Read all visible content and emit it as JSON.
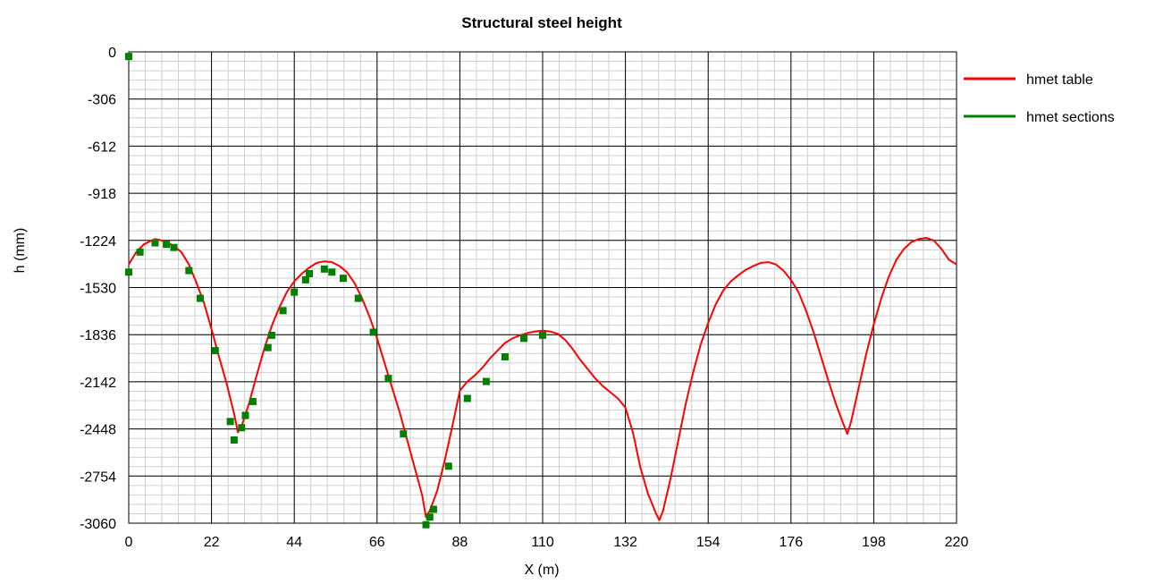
{
  "chart_data": {
    "type": "line",
    "title": "Structural steel height",
    "xlabel": "X (m)",
    "ylabel": "h (mm)",
    "xlim": [
      0,
      220
    ],
    "ylim": [
      -3060,
      0
    ],
    "xticks": [
      0,
      22,
      44,
      66,
      88,
      110,
      132,
      154,
      176,
      198,
      220
    ],
    "yticks": [
      0,
      -306,
      -612,
      -918,
      -1224,
      -1530,
      -1836,
      -2142,
      -2448,
      -2754,
      -3060
    ],
    "grid": true,
    "legend_position": "right",
    "series": [
      {
        "name": "hmet table",
        "color": "#ff0000",
        "style": "line",
        "x": [
          0,
          2,
          4,
          6,
          7,
          8,
          10,
          12,
          14,
          16,
          18,
          20,
          22,
          24,
          26,
          28,
          29,
          30,
          32,
          34,
          36,
          38,
          40,
          42,
          44,
          46,
          48,
          50,
          52,
          54,
          56,
          58,
          60,
          62,
          64,
          66,
          68,
          70,
          72,
          74,
          76,
          78,
          79,
          80,
          82,
          84,
          86,
          88,
          90,
          92,
          94,
          96,
          98,
          100,
          102,
          104,
          106,
          108,
          110,
          112,
          114,
          116,
          118,
          120,
          122,
          124,
          126,
          128,
          130,
          132,
          134,
          136,
          138,
          140,
          141,
          142,
          144,
          146,
          148,
          150,
          152,
          154,
          156,
          158,
          160,
          162,
          164,
          166,
          168,
          170,
          172,
          174,
          176,
          178,
          180,
          182,
          184,
          186,
          188,
          190,
          191,
          192,
          194,
          196,
          198,
          200,
          202,
          204,
          206,
          208,
          210,
          212,
          214,
          216,
          218,
          220
        ],
        "y": [
          -1380,
          -1300,
          -1250,
          -1225,
          -1215,
          -1220,
          -1235,
          -1260,
          -1300,
          -1380,
          -1500,
          -1630,
          -1800,
          -1980,
          -2150,
          -2350,
          -2470,
          -2430,
          -2280,
          -2100,
          -1930,
          -1780,
          -1660,
          -1560,
          -1490,
          -1440,
          -1400,
          -1370,
          -1360,
          -1365,
          -1390,
          -1430,
          -1500,
          -1600,
          -1720,
          -1860,
          -2020,
          -2180,
          -2340,
          -2520,
          -2700,
          -2880,
          -3020,
          -2980,
          -2850,
          -2650,
          -2430,
          -2200,
          -2140,
          -2100,
          -2050,
          -1990,
          -1940,
          -1890,
          -1860,
          -1840,
          -1825,
          -1815,
          -1810,
          -1815,
          -1830,
          -1870,
          -1930,
          -2000,
          -2060,
          -2120,
          -2170,
          -2210,
          -2250,
          -2310,
          -2470,
          -2700,
          -2870,
          -2990,
          -3040,
          -2980,
          -2770,
          -2530,
          -2290,
          -2080,
          -1900,
          -1760,
          -1640,
          -1550,
          -1490,
          -1450,
          -1415,
          -1390,
          -1370,
          -1365,
          -1380,
          -1420,
          -1480,
          -1560,
          -1680,
          -1820,
          -1980,
          -2140,
          -2290,
          -2420,
          -2480,
          -2400,
          -2180,
          -1960,
          -1770,
          -1600,
          -1460,
          -1350,
          -1280,
          -1235,
          -1215,
          -1208,
          -1225,
          -1280,
          -1350,
          -1380
        ]
      },
      {
        "name": "hmet sections",
        "color": "#008000",
        "style": "marker",
        "x": [
          0,
          0,
          3,
          7,
          10,
          12,
          16,
          19,
          23,
          27,
          28,
          30,
          31,
          33,
          37,
          38,
          41,
          44,
          47,
          48,
          52,
          54,
          57,
          61,
          65,
          69,
          73,
          79,
          80,
          81,
          85,
          90,
          95,
          100,
          105,
          110
        ],
        "y": [
          -30,
          -1430,
          -1300,
          -1240,
          -1250,
          -1270,
          -1420,
          -1600,
          -1940,
          -2400,
          -2520,
          -2440,
          -2360,
          -2270,
          -1920,
          -1840,
          -1680,
          -1560,
          -1480,
          -1440,
          -1410,
          -1430,
          -1470,
          -1600,
          -1820,
          -2120,
          -2480,
          -3070,
          -3020,
          -2970,
          -2690,
          -2250,
          -2140,
          -1980,
          -1860,
          -1840
        ]
      }
    ]
  }
}
